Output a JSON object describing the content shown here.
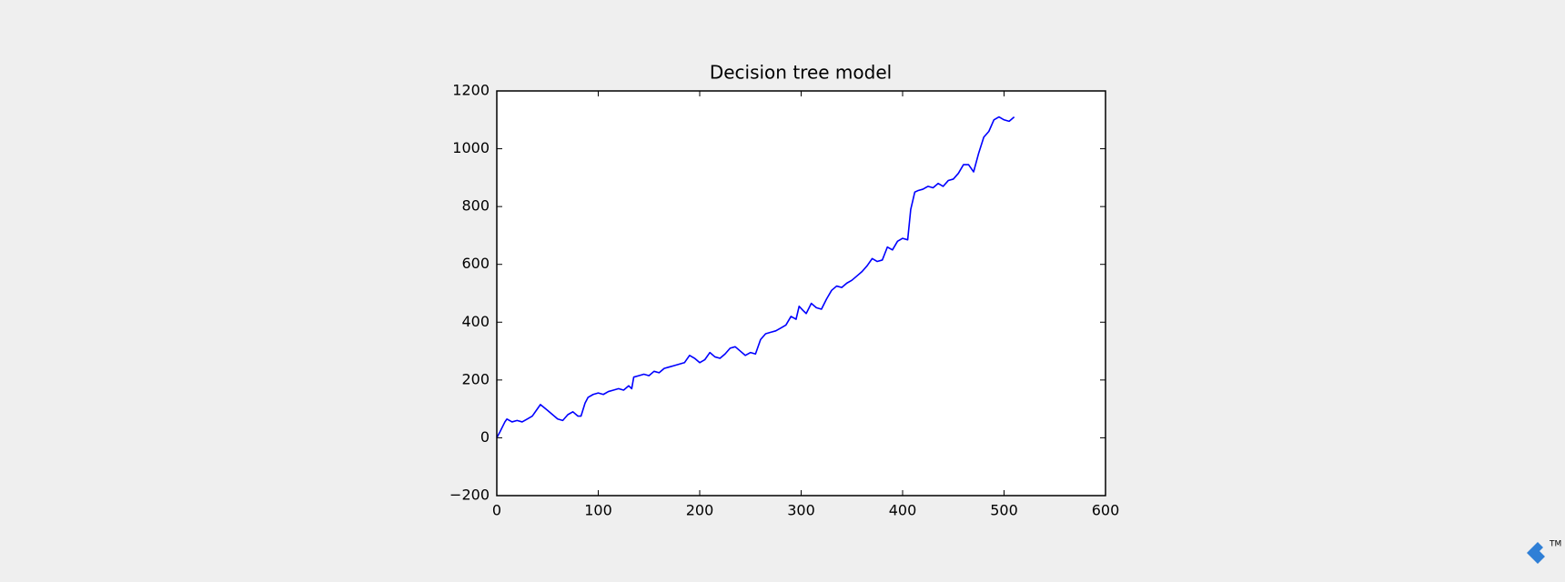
{
  "chart_data": {
    "type": "line",
    "title": "Decision tree model",
    "x": [
      0,
      3,
      8,
      10,
      15,
      20,
      25,
      30,
      35,
      40,
      43,
      50,
      55,
      60,
      65,
      70,
      75,
      80,
      83,
      87,
      90,
      95,
      100,
      105,
      110,
      115,
      120,
      125,
      130,
      133,
      135,
      140,
      145,
      150,
      155,
      160,
      165,
      170,
      175,
      180,
      185,
      190,
      195,
      200,
      205,
      210,
      215,
      220,
      225,
      230,
      235,
      240,
      245,
      250,
      255,
      260,
      265,
      270,
      275,
      280,
      285,
      290,
      295,
      298,
      302,
      305,
      310,
      315,
      320,
      325,
      330,
      335,
      340,
      345,
      350,
      355,
      360,
      365,
      370,
      375,
      380,
      385,
      390,
      395,
      400,
      405,
      408,
      410,
      412,
      415,
      420,
      425,
      430,
      435,
      440,
      445,
      450,
      455,
      460,
      465,
      470,
      475,
      480,
      485,
      490,
      495,
      500,
      505,
      510
    ],
    "series": [
      {
        "name": "Decision tree model",
        "color": "#0000ff",
        "values": [
          0,
          20,
          55,
          65,
          55,
          60,
          55,
          65,
          75,
          100,
          115,
          95,
          80,
          65,
          60,
          80,
          90,
          75,
          75,
          120,
          140,
          150,
          155,
          150,
          160,
          165,
          170,
          165,
          180,
          170,
          210,
          215,
          220,
          215,
          230,
          225,
          240,
          245,
          250,
          255,
          260,
          285,
          275,
          260,
          270,
          295,
          280,
          275,
          290,
          310,
          315,
          300,
          285,
          295,
          290,
          340,
          360,
          365,
          370,
          380,
          390,
          420,
          410,
          455,
          440,
          430,
          465,
          450,
          445,
          480,
          510,
          525,
          520,
          535,
          545,
          560,
          575,
          595,
          620,
          610,
          615,
          660,
          650,
          680,
          690,
          685,
          790,
          820,
          850,
          855,
          860,
          870,
          865,
          880,
          870,
          890,
          895,
          915,
          945,
          945,
          920,
          985,
          1040,
          1060,
          1100,
          1110,
          1100,
          1095,
          1110
        ]
      }
    ],
    "xlim": [
      0,
      600
    ],
    "xticks": [
      0,
      100,
      200,
      300,
      400,
      500,
      600
    ],
    "ylim": [
      -200,
      1200
    ],
    "yticks": [
      {
        "value": -200,
        "label": "−200"
      },
      0,
      200,
      400,
      600,
      800,
      1000,
      1200
    ],
    "grid": false
  },
  "logo": {
    "text": "TM"
  }
}
